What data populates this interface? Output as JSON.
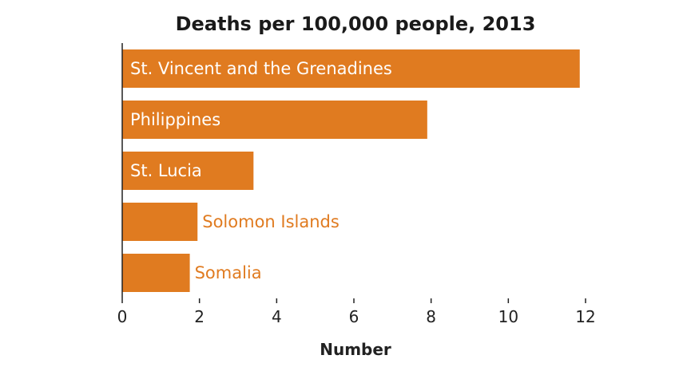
{
  "chart_data": {
    "type": "bar",
    "orientation": "horizontal",
    "title": "Deaths per 100,000 people, 2013",
    "xlabel": "Number",
    "ylabel": "",
    "categories": [
      "St. Vincent and the Grenadines",
      "Philippines",
      "St. Lucia",
      "Solomon Islands",
      "Somalia"
    ],
    "values": [
      11.85,
      7.9,
      3.4,
      1.95,
      1.75
    ],
    "xlim": [
      0,
      12
    ],
    "xticks": [
      0,
      2,
      4,
      6,
      8,
      10,
      12
    ],
    "grid": false,
    "legend": "none",
    "colors": {
      "bar": "#e07b20",
      "label_inside": "#ffffff",
      "label_outside": "#e07b20",
      "axis": "#222222"
    }
  }
}
